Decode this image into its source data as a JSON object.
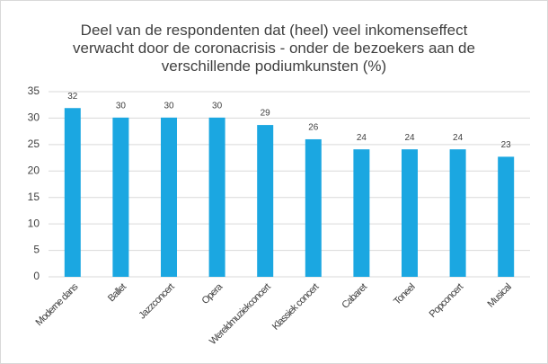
{
  "chart_data": {
    "type": "bar",
    "title": "Deel van de respondenten dat (heel) veel inkomenseffect verwacht door de coronacrisis - onder de bezoekers aan de verschillende podiumkunsten (%)",
    "categories": [
      "Moderne dans",
      "Ballet",
      "Jazzconcert",
      "Opera",
      "Wereldmuziekconcert",
      "Klassiek concert",
      "Cabaret",
      "Toneel",
      "Popconcert",
      "Musical"
    ],
    "values": [
      31.9,
      30.1,
      30.1,
      30.1,
      28.7,
      26,
      24.1,
      24.1,
      24.1,
      22.7
    ],
    "value_labels": [
      "32",
      "30",
      "30",
      "30",
      "29",
      "26",
      "24",
      "24",
      "24",
      "23"
    ],
    "color": "#1ba7e1",
    "ylim": [
      0,
      35
    ],
    "yticks": [
      0,
      5,
      10,
      15,
      20,
      25,
      30,
      35
    ],
    "grid": true
  }
}
